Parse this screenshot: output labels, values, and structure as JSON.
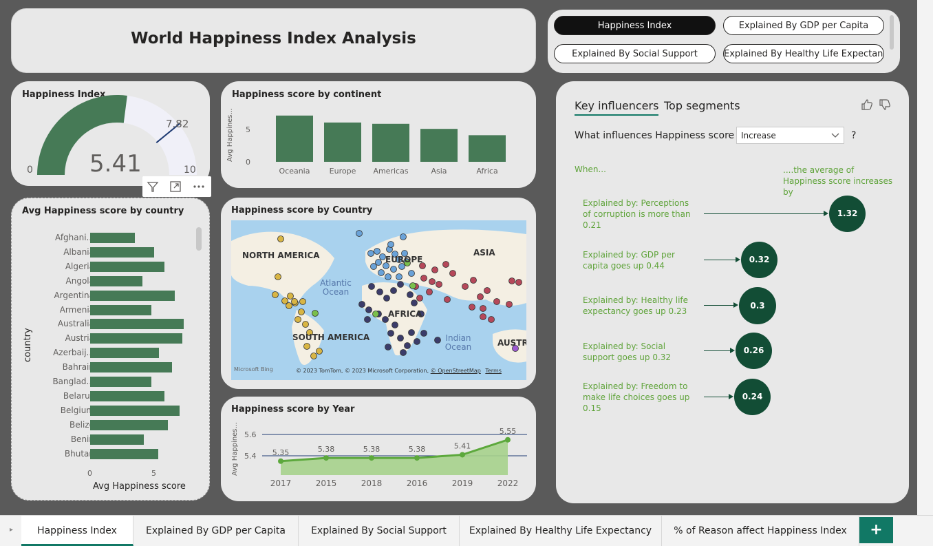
{
  "title": "World Happiness Index Analysis",
  "nav_buttons": [
    {
      "label": "Happiness Index",
      "active": true
    },
    {
      "label": "Explained By GDP per Capita",
      "active": false
    },
    {
      "label": "Explained By Social Support",
      "active": false
    },
    {
      "label": "Explained By Healthy Life Expectancy",
      "active": false
    }
  ],
  "gauge": {
    "title": "Happiness Index",
    "value": 5.41,
    "value_label": "5.41",
    "target": 7.82,
    "target_label": "7.82",
    "min": 0,
    "min_label": "0",
    "max": 10,
    "max_label": "10"
  },
  "continent_chart": {
    "title": "Happiness score by continent",
    "ylabel": "Avg Happines...",
    "yticks": [
      "5",
      "0"
    ]
  },
  "country_chart": {
    "title": "Avg Happiness score by country",
    "ylabel": "country",
    "xlabel": "Avg Happiness score",
    "xticks": [
      "0",
      "5"
    ]
  },
  "map": {
    "title": "Happiness score by Country",
    "labels": {
      "north_america": "NORTH AMERICA",
      "south_america": "SOUTH AMERICA",
      "europe": "EUROPE",
      "asia": "ASIA",
      "africa": "AFRICA",
      "australia": "AUSTRA",
      "atlantic": "Atlantic Ocean",
      "indian": "Indian Ocean"
    },
    "attribution": "© 2023 TomTom, © 2023 Microsoft Corporation,",
    "osm": "© OpenStreetMap",
    "terms": "Terms",
    "bing": "Microsoft Bing"
  },
  "year_chart": {
    "title": "Happiness score by Year",
    "ylabel": "Avg Happines...",
    "yticks": [
      "5.6",
      "5.4"
    ]
  },
  "key_influencers": {
    "tab_active": "Key influencers",
    "tab_other": "Top segments",
    "question_prefix": "What influences Happiness score to",
    "dropdown_value": "Increase",
    "question_suffix": "?",
    "when_label": "When...",
    "avg_label": "....the average of Happiness score increases by",
    "items": [
      {
        "text": "Explained by: Perceptions of corruption is more than 0.21",
        "value": "1.32"
      },
      {
        "text": "Explained by: GDP per capita goes up 0.44",
        "value": "0.32"
      },
      {
        "text": "Explained by: Healthy life expectancy goes up 0.23",
        "value": "0.3"
      },
      {
        "text": "Explained by: Social support goes up 0.32",
        "value": "0.26"
      },
      {
        "text": "Explained by: Freedom to make life choices goes up 0.15",
        "value": "0.24"
      }
    ]
  },
  "page_tabs": [
    {
      "label": "Happiness Index",
      "active": true
    },
    {
      "label": "Explained By GDP per Capita",
      "active": false
    },
    {
      "label": "Explained By Social Support",
      "active": false
    },
    {
      "label": "Explained By Healthy Life Expectancy",
      "active": false
    },
    {
      "label": "% of Reason affect Happiness Index",
      "active": false
    }
  ],
  "add_tab_label": "+",
  "colors": {
    "bar": "#467a56",
    "gauge_fill": "#467a56",
    "gauge_track": "#f0f0f8",
    "line": "#5ca83c",
    "influencer_bubble": "#124d35",
    "influencer_text": "#5fa33a",
    "active_tab_underline": "#117865"
  },
  "chart_data": [
    {
      "type": "bar",
      "title": "Happiness score by continent",
      "categories": [
        "Oceania",
        "Europe",
        "Americas",
        "Asia",
        "Africa"
      ],
      "values": [
        7.3,
        6.2,
        6.0,
        5.2,
        4.2
      ],
      "ylabel": "Avg Happines...",
      "ylim": [
        0,
        7.5
      ]
    },
    {
      "type": "bar",
      "orientation": "horizontal",
      "title": "Avg Happiness score by country",
      "categories": [
        "Afghani...",
        "Albania",
        "Algeria",
        "Angola",
        "Argentina",
        "Armenia",
        "Australia",
        "Austria",
        "Azerbaij...",
        "Bahrain",
        "Banglad...",
        "Belarus",
        "Belgium",
        "Belize",
        "Benin",
        "Bhutan"
      ],
      "values": [
        3.5,
        5.0,
        5.8,
        4.1,
        6.6,
        4.8,
        7.3,
        7.2,
        5.4,
        6.4,
        4.8,
        5.8,
        7.0,
        6.1,
        4.2,
        5.3
      ],
      "xlabel": "Avg Happiness score",
      "ylabel": "country",
      "xlim": [
        0,
        8
      ]
    },
    {
      "type": "area",
      "title": "Happiness score by Year",
      "categories": [
        "2017",
        "2015",
        "2018",
        "2016",
        "2019",
        "2022"
      ],
      "values": [
        5.35,
        5.38,
        5.38,
        5.38,
        5.41,
        5.55
      ],
      "labels": [
        "5.35",
        "5.38",
        "5.38",
        "5.38",
        "5.41",
        "5.55"
      ],
      "ylabel": "Avg Happines...",
      "ylim": [
        5.2,
        5.65
      ],
      "reference_lines": [
        5.6,
        5.4
      ]
    }
  ]
}
